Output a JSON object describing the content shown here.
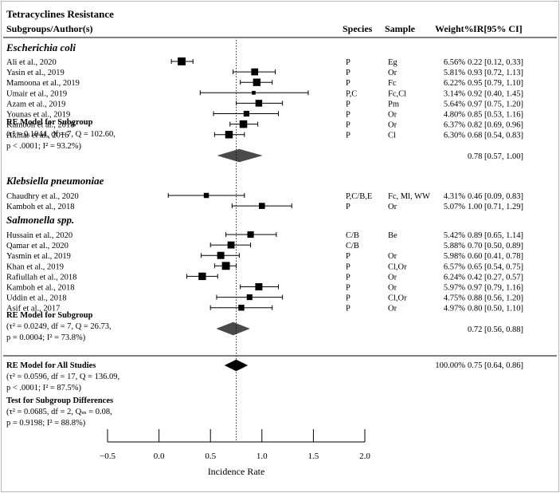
{
  "chart_data": {
    "type": "forest",
    "title": "Tetracyclines Resistance",
    "headers": {
      "author": "Subgroups/Author(s)",
      "species": "Species",
      "sample": "Sample",
      "weight": "Weight%",
      "ci": "IR[95% CI]"
    },
    "xlabel": "Incidence Rate",
    "xlim": [
      -0.5,
      2.0
    ],
    "xticks": [
      "−0.5",
      "0.0",
      "0.5",
      "1.0",
      "1.5",
      "2.0"
    ],
    "tick_values": [
      -0.5,
      0,
      0.5,
      1.0,
      1.5,
      2.0
    ],
    "overall_estimate": 0.75,
    "groups": [
      {
        "name": "Escherichia coli",
        "studies": [
          {
            "author": "Ali et al., 2020",
            "species": "P",
            "sample": "Eg",
            "weight": "6.56%",
            "ci_text": "0.22 [0.12, 0.33]",
            "est": 0.22,
            "lo": 0.12,
            "hi": 0.33
          },
          {
            "author": "Yasin et al., 2019",
            "species": "P",
            "sample": "Or",
            "weight": "5.81%",
            "ci_text": "0.93 [0.72, 1.13]",
            "est": 0.93,
            "lo": 0.72,
            "hi": 1.13
          },
          {
            "author": "Mamoona et al., 2019",
            "species": "P",
            "sample": "Fc",
            "weight": "6.22%",
            "ci_text": "0.95 [0.79, 1.10]",
            "est": 0.95,
            "lo": 0.79,
            "hi": 1.1
          },
          {
            "author": "Umair et al., 2019",
            "species": "P,C",
            "sample": "Fc,Cl",
            "weight": "3.14%",
            "ci_text": "0.92 [0.40, 1.45]",
            "est": 0.92,
            "lo": 0.4,
            "hi": 1.45
          },
          {
            "author": "Azam et al., 2019",
            "species": "P",
            "sample": "Pm",
            "weight": "5.64%",
            "ci_text": "0.97 [0.75, 1.20]",
            "est": 0.97,
            "lo": 0.75,
            "hi": 1.2
          },
          {
            "author": "Younas et al., 2019",
            "species": "P",
            "sample": "Or",
            "weight": "4.80%",
            "ci_text": "0.85 [0.53, 1.16]",
            "est": 0.85,
            "lo": 0.53,
            "hi": 1.16
          },
          {
            "author": "Kamboh et al., 2018",
            "species": "P",
            "sample": "Or",
            "weight": "6.37%",
            "ci_text": "0.82 [0.69, 0.96]",
            "est": 0.82,
            "lo": 0.69,
            "hi": 0.96
          },
          {
            "author": "Akhtar et al., 2016",
            "species": "P",
            "sample": "Cl",
            "weight": "6.30%",
            "ci_text": "0.68 [0.54, 0.83]",
            "est": 0.68,
            "lo": 0.54,
            "hi": 0.83
          }
        ],
        "re_label": "RE Model for Subgroup",
        "re_stats": [
          "(τ² = 0.1044, df = 7, Q = 102.60,",
          "p < .0001; I² = 93.2%)"
        ],
        "re_ci_text": "0.78 [0.57, 1.00]",
        "re_est": 0.78,
        "re_lo": 0.57,
        "re_hi": 1.0
      },
      {
        "name": "Klebsiella pneumoniae",
        "studies": [
          {
            "author": "Chaudhry et al., 2020",
            "species": "P,C/B,E",
            "sample": "Fc, Ml, WW",
            "weight": "4.31%",
            "ci_text": "0.46 [0.09, 0.83]",
            "est": 0.46,
            "lo": 0.09,
            "hi": 0.83
          },
          {
            "author": "Kamboh et al., 2018",
            "species": "P",
            "sample": "Or",
            "weight": "5.07%",
            "ci_text": "1.00 [0.71, 1.29]",
            "est": 1.0,
            "lo": 0.71,
            "hi": 1.29
          }
        ]
      },
      {
        "name": "Salmonella spp.",
        "studies": [
          {
            "author": "Hussain et al., 2020",
            "species": "C/B",
            "sample": "Be",
            "weight": "5.42%",
            "ci_text": "0.89 [0.65, 1.14]",
            "est": 0.89,
            "lo": 0.65,
            "hi": 1.14
          },
          {
            "author": "Qamar et al., 2020",
            "species": "C/B",
            "sample": "",
            "weight": "5.88%",
            "ci_text": "0.70 [0.50, 0.89]",
            "est": 0.7,
            "lo": 0.5,
            "hi": 0.89
          },
          {
            "author": "Yasmin et al., 2019",
            "species": "P",
            "sample": "Or",
            "weight": "5.98%",
            "ci_text": "0.60 [0.41, 0.78]",
            "est": 0.6,
            "lo": 0.41,
            "hi": 0.78
          },
          {
            "author": "Khan et al., 2019",
            "species": "P",
            "sample": "Cl,Or",
            "weight": "6.57%",
            "ci_text": "0.65 [0.54, 0.75]",
            "est": 0.65,
            "lo": 0.54,
            "hi": 0.75
          },
          {
            "author": "Rafiullah et al., 2018",
            "species": "P",
            "sample": "Or",
            "weight": "6.24%",
            "ci_text": "0.42 [0.27, 0.57]",
            "est": 0.42,
            "lo": 0.27,
            "hi": 0.57
          },
          {
            "author": "Kamboh et al., 2018",
            "species": "P",
            "sample": "Or",
            "weight": "5.97%",
            "ci_text": "0.97 [0.79, 1.16]",
            "est": 0.97,
            "lo": 0.79,
            "hi": 1.16
          },
          {
            "author": "Uddin et al., 2018",
            "species": "P",
            "sample": "Cl,Or",
            "weight": "4.75%",
            "ci_text": "0.88 [0.56, 1.20]",
            "est": 0.88,
            "lo": 0.56,
            "hi": 1.2
          },
          {
            "author": "Asif et al., 2017",
            "species": "P",
            "sample": "Or",
            "weight": "4.97%",
            "ci_text": "0.80 [0.50, 1.10]",
            "est": 0.8,
            "lo": 0.5,
            "hi": 1.1
          }
        ],
        "re_label": "RE Model for Subgroup",
        "re_stats": [
          "(τ² = 0.0249, df = 7, Q = 26.73,",
          "p = 0.0004; I² = 73.8%)"
        ],
        "re_ci_text": "0.72 [0.56, 0.88]",
        "re_est": 0.72,
        "re_lo": 0.56,
        "re_hi": 0.88
      }
    ],
    "overall": {
      "label": "RE Model for All Studies",
      "stats": [
        "(τ² = 0.0596, df = 17, Q = 136.09,",
        "p < .0001; I² = 87.5%)"
      ],
      "weight": "100.00%",
      "ci_text": "0.75 [0.64, 0.86]",
      "est": 0.75,
      "lo": 0.64,
      "hi": 0.86
    },
    "subgroup_test": {
      "label": "Test for Subgroup Differences",
      "stats": [
        "(τ² = 0.0685, df = 2, Qₘ = 0.08,",
        "p = 0.9198; I² = 88.8%)"
      ]
    }
  }
}
